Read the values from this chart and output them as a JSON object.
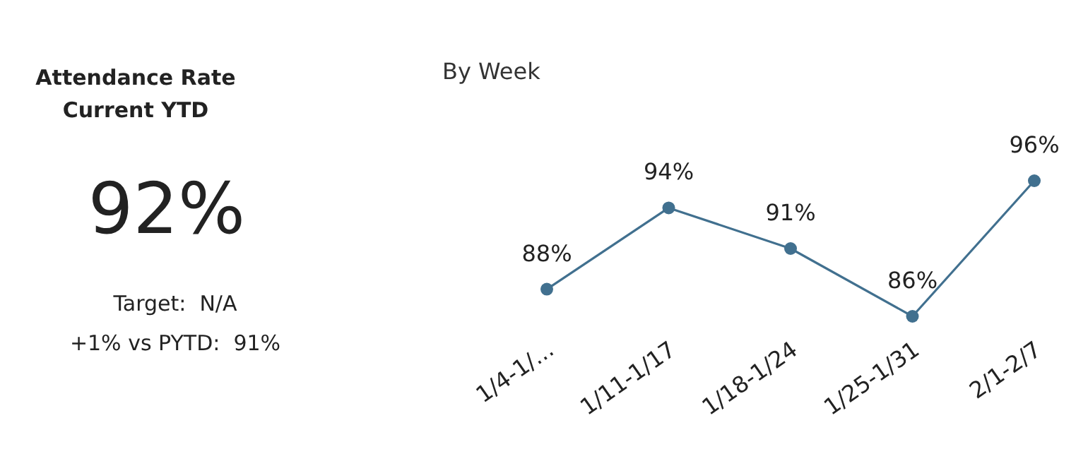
{
  "chart_data": [
    {
      "type": "other",
      "title": "Attendance Rate",
      "subtitle": "Current YTD",
      "annotations": [
        "92%",
        "Target:  N/A",
        "+1% vs PYTD:  91%"
      ]
    },
    {
      "type": "line",
      "title": "By Week",
      "categories": [
        "1/4-1/...",
        "1/11-1/17",
        "1/18-1/24",
        "1/25-1/31",
        "2/1-2/7"
      ],
      "series": [
        {
          "color": "#41708f",
          "values": [
            88,
            94,
            91,
            86,
            96
          ],
          "value_labels": [
            "88%",
            "94%",
            "91%",
            "86%",
            "96%"
          ]
        }
      ],
      "marker": "circle",
      "line_style": "solid",
      "tick_labels": "x"
    }
  ]
}
